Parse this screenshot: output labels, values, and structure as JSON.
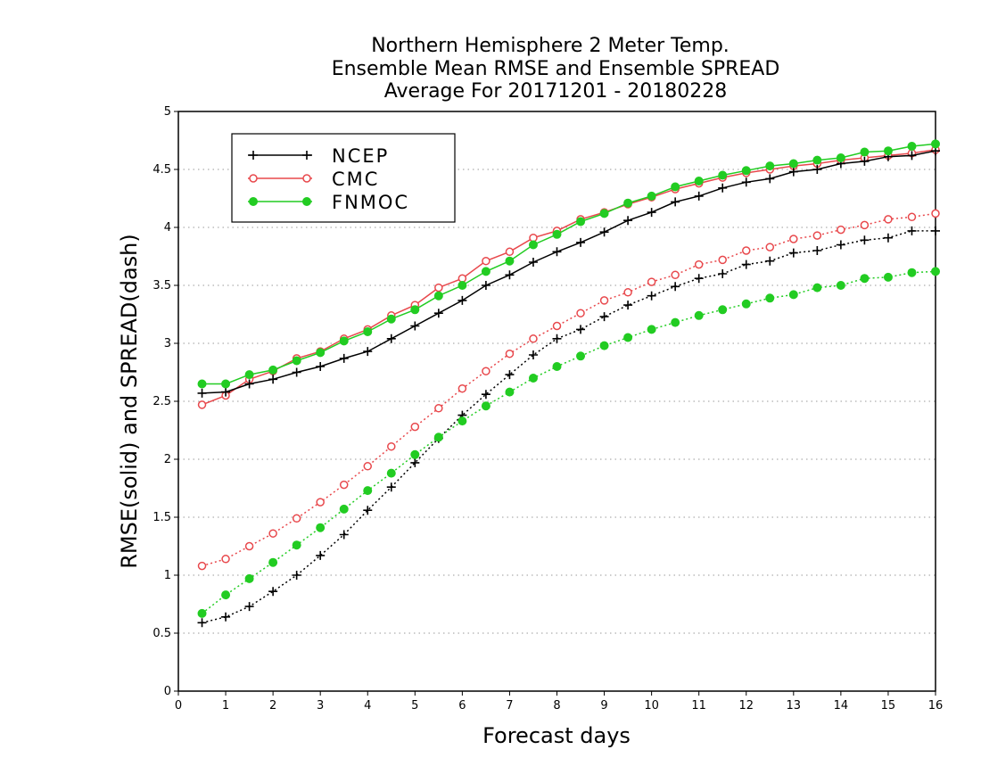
{
  "chart_data": {
    "type": "line",
    "title": [
      "Northern Hemisphere 2 Meter Temp.",
      "Ensemble Mean RMSE and Ensemble SPREAD",
      "Average For 20171201 - 20180228"
    ],
    "xlabel": "Forecast days",
    "ylabel": "RMSE(solid) and SPREAD(dash)",
    "xlim": [
      0,
      16
    ],
    "ylim": [
      0,
      5
    ],
    "x_ticks": [
      "0",
      "1",
      "2",
      "3",
      "4",
      "5",
      "6",
      "7",
      "8",
      "9",
      "10",
      "11",
      "12",
      "13",
      "14",
      "15",
      "16"
    ],
    "y_ticks": [
      "0",
      "0.5",
      "1",
      "1.5",
      "2",
      "2.5",
      "3",
      "3.5",
      "4",
      "4.5",
      "5"
    ],
    "grid": "horizontal dotted",
    "legend_position": "top-left",
    "x": [
      0.5,
      1,
      1.5,
      2,
      2.5,
      3,
      3.5,
      4,
      4.5,
      5,
      5.5,
      6,
      6.5,
      7,
      7.5,
      8,
      8.5,
      9,
      9.5,
      10,
      10.5,
      11,
      11.5,
      12,
      12.5,
      13,
      13.5,
      14,
      14.5,
      15,
      15.5,
      16
    ],
    "series": [
      {
        "name": "NCEP",
        "color": "#000000",
        "marker": "plus",
        "kind": "rmse",
        "line": "solid",
        "values": [
          2.57,
          2.58,
          2.65,
          2.69,
          2.75,
          2.8,
          2.87,
          2.93,
          3.04,
          3.15,
          3.26,
          3.37,
          3.5,
          3.59,
          3.7,
          3.79,
          3.87,
          3.96,
          4.06,
          4.13,
          4.22,
          4.27,
          4.34,
          4.39,
          4.42,
          4.48,
          4.5,
          4.55,
          4.57,
          4.61,
          4.62,
          4.66
        ]
      },
      {
        "name": "CMC",
        "color": "#e8484c",
        "marker": "open-circle",
        "kind": "rmse",
        "line": "solid",
        "values": [
          2.47,
          2.55,
          2.69,
          2.76,
          2.87,
          2.93,
          3.04,
          3.12,
          3.24,
          3.33,
          3.48,
          3.56,
          3.71,
          3.79,
          3.91,
          3.97,
          4.07,
          4.13,
          4.2,
          4.26,
          4.33,
          4.38,
          4.43,
          4.47,
          4.5,
          4.53,
          4.55,
          4.58,
          4.6,
          4.62,
          4.64,
          4.67
        ]
      },
      {
        "name": "FNMOC",
        "color": "#22cc22",
        "marker": "filled-circle",
        "kind": "rmse",
        "line": "solid",
        "values": [
          2.65,
          2.65,
          2.73,
          2.77,
          2.85,
          2.92,
          3.02,
          3.1,
          3.21,
          3.29,
          3.41,
          3.5,
          3.62,
          3.71,
          3.85,
          3.94,
          4.05,
          4.12,
          4.21,
          4.27,
          4.35,
          4.4,
          4.45,
          4.49,
          4.53,
          4.55,
          4.58,
          4.6,
          4.65,
          4.66,
          4.7,
          4.72
        ]
      },
      {
        "name": "NCEP",
        "color": "#000000",
        "marker": "plus",
        "kind": "spread",
        "line": "dotted",
        "values": [
          0.59,
          0.64,
          0.73,
          0.86,
          1.0,
          1.17,
          1.35,
          1.56,
          1.76,
          1.97,
          2.18,
          2.38,
          2.56,
          2.73,
          2.9,
          3.04,
          3.12,
          3.23,
          3.33,
          3.41,
          3.49,
          3.56,
          3.6,
          3.68,
          3.71,
          3.78,
          3.8,
          3.85,
          3.89,
          3.91,
          3.97,
          3.97
        ]
      },
      {
        "name": "CMC",
        "color": "#e8484c",
        "marker": "open-circle",
        "kind": "spread",
        "line": "dotted",
        "values": [
          1.08,
          1.14,
          1.25,
          1.36,
          1.49,
          1.63,
          1.78,
          1.94,
          2.11,
          2.28,
          2.44,
          2.61,
          2.76,
          2.91,
          3.04,
          3.15,
          3.26,
          3.37,
          3.44,
          3.53,
          3.59,
          3.68,
          3.72,
          3.8,
          3.83,
          3.9,
          3.93,
          3.98,
          4.02,
          4.07,
          4.09,
          4.12
        ]
      },
      {
        "name": "FNMOC",
        "color": "#22cc22",
        "marker": "filled-circle",
        "kind": "spread",
        "line": "dotted",
        "values": [
          0.67,
          0.83,
          0.97,
          1.11,
          1.26,
          1.41,
          1.57,
          1.73,
          1.88,
          2.04,
          2.19,
          2.33,
          2.46,
          2.58,
          2.7,
          2.8,
          2.89,
          2.98,
          3.05,
          3.12,
          3.18,
          3.24,
          3.29,
          3.34,
          3.39,
          3.42,
          3.48,
          3.5,
          3.56,
          3.57,
          3.61,
          3.62
        ]
      }
    ],
    "legend": [
      {
        "label": "NCEP",
        "color": "#000000",
        "marker": "plus"
      },
      {
        "label": "CMC",
        "color": "#e8484c",
        "marker": "open-circle"
      },
      {
        "label": "FNMOC",
        "color": "#22cc22",
        "marker": "filled-circle"
      }
    ]
  }
}
